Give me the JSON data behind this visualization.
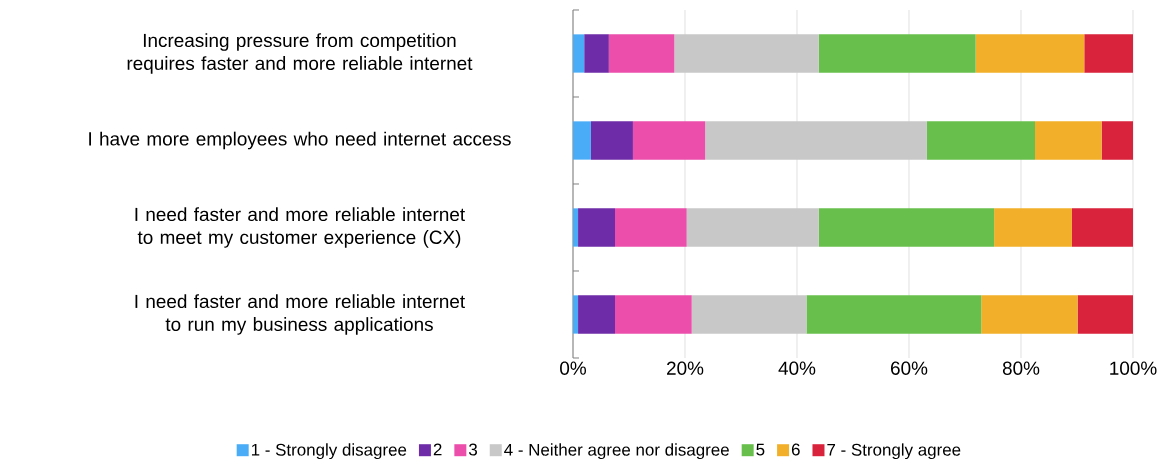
{
  "chart_data": {
    "type": "bar",
    "orientation": "horizontal",
    "stacked": true,
    "categories": [
      "Increasing pressure from competition requires faster and more reliable internet",
      "I have more employees who need internet access",
      "I need faster and more reliable internet to meet my customer experience (CX)",
      "I need faster and more reliable internet to run my business applications"
    ],
    "series": [
      {
        "name": "1 - Strongly disagree",
        "color": "#4aacf7",
        "values": [
          2.0,
          3.2,
          0.9,
          0.9
        ]
      },
      {
        "name": "2",
        "color": "#6e2ca8",
        "values": [
          4.4,
          7.5,
          6.6,
          6.6
        ]
      },
      {
        "name": "3",
        "color": "#ec4fab",
        "values": [
          11.7,
          12.9,
          12.8,
          13.7
        ]
      },
      {
        "name": "4 - Neither agree nor disagree",
        "color": "#c8c8c8",
        "values": [
          25.8,
          39.6,
          23.6,
          20.5
        ]
      },
      {
        "name": "5",
        "color": "#69bf4c",
        "values": [
          28.0,
          19.3,
          31.3,
          31.2
        ]
      },
      {
        "name": "6",
        "color": "#f2b02a",
        "values": [
          19.4,
          11.9,
          13.9,
          17.2
        ]
      },
      {
        "name": "7 - Strongly agree",
        "color": "#d9223b",
        "values": [
          8.7,
          5.6,
          10.9,
          9.9
        ]
      }
    ],
    "xlim": [
      0,
      100
    ],
    "xticks": [
      {
        "value": 0,
        "label": "0%"
      },
      {
        "value": 20,
        "label": "20%"
      },
      {
        "value": 40,
        "label": "40%"
      },
      {
        "value": 60,
        "label": "60%"
      },
      {
        "value": 80,
        "label": "80%"
      },
      {
        "value": 100,
        "label": "100%"
      }
    ],
    "grid": "x",
    "legend": "bottom"
  }
}
